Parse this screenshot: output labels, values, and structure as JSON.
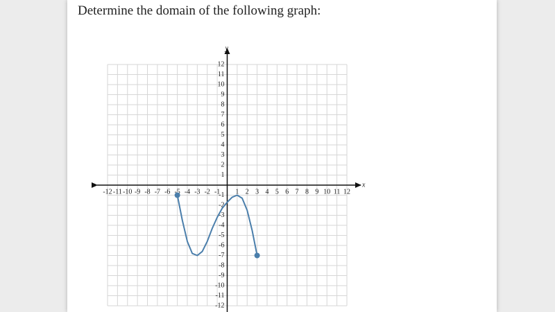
{
  "question": "Determine the domain of the following graph:",
  "chart_data": {
    "type": "line",
    "x_label": "x",
    "y_label": "y",
    "x": [
      -5,
      -4.5,
      -4,
      -3.5,
      -3,
      -2.5,
      -2,
      -1.5,
      -1,
      -0.5,
      0,
      0.5,
      1,
      1.5,
      2,
      2.5,
      3
    ],
    "series": [
      {
        "color": "#4a7eab",
        "values": [
          -1,
          -3.5,
          -5.6,
          -6.8,
          -7,
          -6.6,
          -5.6,
          -4.3,
          -3.2,
          -2.3,
          -1.7,
          -1.2,
          -1,
          -1.3,
          -2.5,
          -4.5,
          -7
        ]
      }
    ],
    "xlim": [
      -12,
      12
    ],
    "ylim": [
      -12,
      12
    ],
    "xticks": [
      -12,
      -11,
      -10,
      -9,
      -8,
      -7,
      -6,
      -5,
      -4,
      -3,
      -2,
      -1,
      1,
      2,
      3,
      4,
      5,
      6,
      7,
      8,
      9,
      10,
      11,
      12
    ],
    "yticks": [
      -12,
      -11,
      -10,
      -9,
      -8,
      -7,
      -6,
      -5,
      -4,
      -3,
      -2,
      -1,
      1,
      2,
      3,
      4,
      5,
      6,
      7,
      8,
      9,
      10,
      11,
      12
    ],
    "grid": true
  }
}
